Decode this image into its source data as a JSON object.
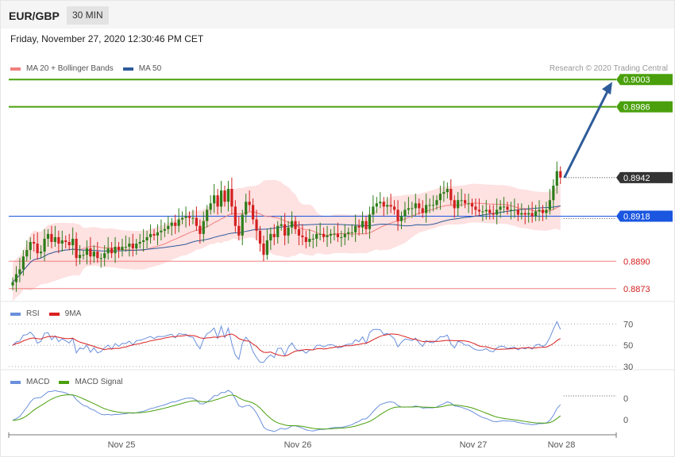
{
  "header": {
    "pair": "EUR/GBP",
    "timeframe": "30 MIN",
    "datetime": "Friday, November 27, 2020 12:30:46 PM CET"
  },
  "main_legend": {
    "ma20_label": "MA 20 + Bollinger Bands",
    "ma50_label": "MA 50",
    "credit": "Research © 2020 Trading Central"
  },
  "rsi_legend": {
    "rsi_label": "RSI",
    "ma_label": "9MA"
  },
  "macd_legend": {
    "macd_label": "MACD",
    "signal_label": "MACD Signal"
  },
  "colors": {
    "ma20": "#f08080",
    "ma50": "#2e5b9a",
    "bb_fill": "#fdd7d7",
    "up": "#2e7d1a",
    "down": "#d32020",
    "resistance": "#4aa00c",
    "support": "#f08080",
    "pivot": "#1a56e0",
    "current": "#333333",
    "arrow": "#2e5b9a",
    "rsi": "#6a8fdc",
    "rsi_ma": "#d92020",
    "macd": "#6a8fdc",
    "signal": "#4aa00c"
  },
  "chart_data": [
    {
      "type": "candlestick",
      "name": "price",
      "ylim": [
        0.8865,
        0.901
      ],
      "levels": [
        {
          "value": 0.9003,
          "label": "0.9003",
          "kind": "resistance"
        },
        {
          "value": 0.8986,
          "label": "0.8986",
          "kind": "resistance"
        },
        {
          "value": 0.8942,
          "label": "0.8942",
          "kind": "current"
        },
        {
          "value": 0.8918,
          "label": "0.8918",
          "kind": "pivot"
        },
        {
          "value": 0.889,
          "label": "0.8890",
          "kind": "support"
        },
        {
          "value": 0.8873,
          "label": "0.8873",
          "kind": "support"
        }
      ],
      "closes": [
        0.8877,
        0.8882,
        0.8885,
        0.8893,
        0.8897,
        0.8902,
        0.8901,
        0.8895,
        0.8896,
        0.8904,
        0.8907,
        0.8902,
        0.8905,
        0.8901,
        0.8903,
        0.8902,
        0.89,
        0.8904,
        0.8892,
        0.8894,
        0.8894,
        0.8898,
        0.8893,
        0.8896,
        0.8892,
        0.8892,
        0.8895,
        0.8898,
        0.8895,
        0.8899,
        0.8897,
        0.8899,
        0.8899,
        0.8901,
        0.8898,
        0.8901,
        0.8902,
        0.8903,
        0.8905,
        0.8907,
        0.8906,
        0.8908,
        0.8909,
        0.891,
        0.8912,
        0.8914,
        0.8912,
        0.8916,
        0.8917,
        0.8918,
        0.8917,
        0.8917,
        0.8912,
        0.8907,
        0.8915,
        0.8922,
        0.8926,
        0.8931,
        0.8924,
        0.8934,
        0.8927,
        0.8935,
        0.8924,
        0.8912,
        0.8906,
        0.8919,
        0.8927,
        0.8925,
        0.8916,
        0.8909,
        0.8901,
        0.8894,
        0.8903,
        0.8907,
        0.8905,
        0.8912,
        0.8913,
        0.8906,
        0.8911,
        0.8915,
        0.891,
        0.8906,
        0.8905,
        0.8902,
        0.8904,
        0.8904,
        0.8907,
        0.8907,
        0.8905,
        0.8906,
        0.8907,
        0.8907,
        0.8905,
        0.8905,
        0.8907,
        0.8908,
        0.8908,
        0.8912,
        0.8911,
        0.8915,
        0.891,
        0.8919,
        0.8924,
        0.8926,
        0.8927,
        0.8924,
        0.8925,
        0.8924,
        0.8922,
        0.8915,
        0.8918,
        0.8922,
        0.8923,
        0.8923,
        0.8926,
        0.8923,
        0.892,
        0.8925,
        0.8925,
        0.8925,
        0.8928,
        0.8932,
        0.8933,
        0.8935,
        0.8928,
        0.8923,
        0.8928,
        0.8928,
        0.8926,
        0.8926,
        0.8924,
        0.8922,
        0.8921,
        0.8921,
        0.8922,
        0.892,
        0.8919,
        0.8922,
        0.8924,
        0.8924,
        0.8922,
        0.8922,
        0.8922,
        0.8919,
        0.892,
        0.8919,
        0.892,
        0.8918,
        0.8921,
        0.8922,
        0.892,
        0.8922,
        0.8928,
        0.8937,
        0.8946,
        0.8942
      ]
    },
    {
      "type": "line",
      "name": "RSI",
      "ticks": [
        "70",
        "50",
        "30"
      ],
      "ylim": [
        30,
        80
      ]
    },
    {
      "type": "line",
      "name": "MACD",
      "ticks": [
        "0",
        "0"
      ]
    },
    {
      "type": "axis",
      "x_labels": [
        "Nov 25",
        "Nov 26",
        "Nov 27",
        "Nov 28"
      ]
    }
  ]
}
